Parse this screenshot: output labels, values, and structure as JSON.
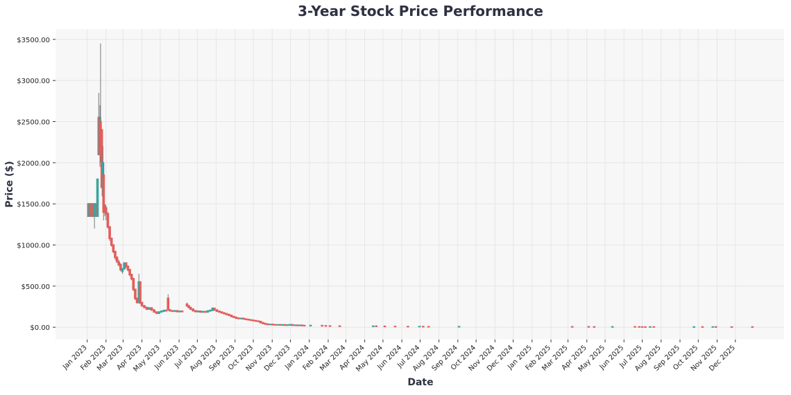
{
  "chart_data": {
    "type": "candlestick",
    "title": "3-Year Stock Price Performance",
    "xlabel": "Date",
    "ylabel": "Price ($)",
    "xlim": [
      "2022-11-10",
      "2026-02-19"
    ],
    "ylim": [
      -150,
      3625
    ],
    "grid": true,
    "x_ticks": [
      "Jan 2023",
      "Feb 2023",
      "Mar 2023",
      "Apr 2023",
      "May 2023",
      "Jun 2023",
      "Jul 2023",
      "Aug 2023",
      "Sep 2023",
      "Oct 2023",
      "Nov 2023",
      "Dec 2023",
      "Jan 2024",
      "Feb 2024",
      "Mar 2024",
      "Apr 2024",
      "May 2024",
      "Jun 2024",
      "Jul 2024",
      "Aug 2024",
      "Sep 2024",
      "Oct 2024",
      "Nov 2024",
      "Dec 2024",
      "Jan 2025",
      "Feb 2025",
      "Mar 2025",
      "Apr 2025",
      "May 2025",
      "Jun 2025",
      "Jul 2025",
      "Aug 2025",
      "Sep 2025",
      "Oct 2025",
      "Nov 2025",
      "Dec 2025"
    ],
    "x_tick_dates": [
      "2023-01-01",
      "2023-02-01",
      "2023-03-01",
      "2023-04-01",
      "2023-05-01",
      "2023-06-01",
      "2023-07-01",
      "2023-08-01",
      "2023-09-01",
      "2023-10-01",
      "2023-11-01",
      "2023-12-01",
      "2024-01-01",
      "2024-02-01",
      "2024-03-01",
      "2024-04-01",
      "2024-05-01",
      "2024-06-01",
      "2024-07-01",
      "2024-08-01",
      "2024-09-01",
      "2024-10-01",
      "2024-11-01",
      "2024-12-01",
      "2025-01-01",
      "2025-02-01",
      "2025-03-01",
      "2025-04-01",
      "2025-05-01",
      "2025-06-01",
      "2025-07-01",
      "2025-08-01",
      "2025-09-01",
      "2025-10-01",
      "2025-11-01",
      "2025-12-01"
    ],
    "y_ticks": [
      0,
      500,
      1000,
      1500,
      2000,
      2500,
      3000,
      3500
    ],
    "y_tick_labels": [
      "$0.00",
      "$500.00",
      "$1000.00",
      "$1500.00",
      "$2000.00",
      "$2500.00",
      "$3000.00",
      "$3500.00"
    ],
    "colors": {
      "up": "#3aa6a0",
      "down": "#e35d5b",
      "wick": "#777777",
      "background": "#f7f7f7",
      "title": "#2d3142"
    },
    "candle_fields": [
      "date",
      "open",
      "high",
      "low",
      "close"
    ],
    "candles": [
      [
        "2023-01-03",
        1500,
        1500,
        1350,
        1350
      ],
      [
        "2023-01-05",
        1350,
        1500,
        1350,
        1500
      ],
      [
        "2023-01-07",
        1500,
        1500,
        1350,
        1350
      ],
      [
        "2023-01-09",
        1350,
        1500,
        1350,
        1500
      ],
      [
        "2023-01-11",
        1500,
        1500,
        1350,
        1350
      ],
      [
        "2023-01-13",
        1350,
        1500,
        1200,
        1500
      ],
      [
        "2023-01-16",
        1500,
        1500,
        1350,
        1350
      ],
      [
        "2023-01-18",
        1350,
        1800,
        1350,
        1800
      ],
      [
        "2023-01-20",
        2550,
        2850,
        2100,
        2100
      ],
      [
        "2023-01-22",
        2100,
        2700,
        1950,
        2550
      ],
      [
        "2023-01-23",
        2500,
        3450,
        2000,
        2100
      ],
      [
        "2023-01-25",
        2400,
        2400,
        1700,
        1700
      ],
      [
        "2023-01-27",
        1600,
        2200,
        1550,
        2000
      ],
      [
        "2023-01-28",
        1850,
        2000,
        1300,
        1400
      ],
      [
        "2023-01-30",
        1480,
        1500,
        1350,
        1420
      ],
      [
        "2023-02-01",
        1450,
        1480,
        1300,
        1380
      ],
      [
        "2023-02-04",
        1380,
        1400,
        1200,
        1220
      ],
      [
        "2023-02-07",
        1220,
        1230,
        1050,
        1080
      ],
      [
        "2023-02-10",
        1080,
        1090,
        980,
        1000
      ],
      [
        "2023-02-13",
        1000,
        1000,
        900,
        920
      ],
      [
        "2023-02-16",
        920,
        930,
        820,
        850
      ],
      [
        "2023-02-19",
        850,
        860,
        780,
        800
      ],
      [
        "2023-02-22",
        790,
        820,
        740,
        760
      ],
      [
        "2023-02-25",
        760,
        780,
        680,
        700
      ],
      [
        "2023-02-28",
        680,
        720,
        650,
        710
      ],
      [
        "2023-03-03",
        710,
        790,
        700,
        780
      ],
      [
        "2023-03-06",
        780,
        790,
        720,
        740
      ],
      [
        "2023-03-09",
        740,
        750,
        680,
        700
      ],
      [
        "2023-03-12",
        700,
        710,
        620,
        640
      ],
      [
        "2023-03-15",
        640,
        650,
        570,
        590
      ],
      [
        "2023-03-18",
        590,
        600,
        440,
        460
      ],
      [
        "2023-03-21",
        460,
        470,
        330,
        350
      ],
      [
        "2023-03-24",
        350,
        360,
        290,
        300
      ],
      [
        "2023-03-27",
        300,
        650,
        290,
        550
      ],
      [
        "2023-03-29",
        550,
        560,
        280,
        300
      ],
      [
        "2023-04-01",
        300,
        310,
        250,
        260
      ],
      [
        "2023-04-05",
        260,
        270,
        230,
        240
      ],
      [
        "2023-04-09",
        240,
        250,
        210,
        220
      ],
      [
        "2023-04-13",
        220,
        240,
        210,
        235
      ],
      [
        "2023-04-17",
        235,
        240,
        200,
        210
      ],
      [
        "2023-04-21",
        210,
        215,
        180,
        185
      ],
      [
        "2023-04-25",
        185,
        190,
        160,
        170
      ],
      [
        "2023-04-29",
        170,
        190,
        160,
        185
      ],
      [
        "2023-05-03",
        185,
        200,
        180,
        195
      ],
      [
        "2023-05-07",
        195,
        210,
        185,
        205
      ],
      [
        "2023-05-11",
        205,
        215,
        195,
        200
      ],
      [
        "2023-05-14",
        350,
        400,
        200,
        220
      ],
      [
        "2023-05-17",
        210,
        220,
        190,
        200
      ],
      [
        "2023-05-21",
        200,
        210,
        185,
        195
      ],
      [
        "2023-05-25",
        195,
        205,
        185,
        200
      ],
      [
        "2023-05-29",
        200,
        205,
        185,
        190
      ],
      [
        "2023-06-02",
        190,
        200,
        180,
        195
      ],
      [
        "2023-06-06",
        195,
        200,
        185,
        190
      ],
      [
        "2023-06-14",
        280,
        300,
        250,
        260
      ],
      [
        "2023-06-17",
        260,
        265,
        230,
        240
      ],
      [
        "2023-06-20",
        240,
        245,
        210,
        220
      ],
      [
        "2023-06-24",
        220,
        225,
        195,
        200
      ],
      [
        "2023-06-28",
        200,
        205,
        185,
        190
      ],
      [
        "2023-07-02",
        190,
        200,
        180,
        195
      ],
      [
        "2023-07-06",
        195,
        200,
        180,
        185
      ],
      [
        "2023-07-10",
        185,
        195,
        175,
        190
      ],
      [
        "2023-07-14",
        190,
        195,
        180,
        185
      ],
      [
        "2023-07-18",
        185,
        200,
        180,
        198
      ],
      [
        "2023-07-22",
        198,
        210,
        190,
        205
      ],
      [
        "2023-07-26",
        205,
        240,
        200,
        230
      ],
      [
        "2023-07-29",
        230,
        235,
        200,
        210
      ],
      [
        "2023-08-02",
        210,
        215,
        190,
        195
      ],
      [
        "2023-08-06",
        195,
        200,
        180,
        185
      ],
      [
        "2023-08-10",
        185,
        190,
        170,
        175
      ],
      [
        "2023-08-14",
        175,
        180,
        160,
        165
      ],
      [
        "2023-08-18",
        165,
        170,
        150,
        155
      ],
      [
        "2023-08-22",
        155,
        160,
        140,
        145
      ],
      [
        "2023-08-26",
        145,
        150,
        125,
        130
      ],
      [
        "2023-08-30",
        130,
        135,
        115,
        120
      ],
      [
        "2023-09-03",
        120,
        125,
        105,
        110
      ],
      [
        "2023-09-07",
        110,
        115,
        100,
        105
      ],
      [
        "2023-09-11",
        105,
        110,
        95,
        108
      ],
      [
        "2023-09-15",
        108,
        112,
        98,
        100
      ],
      [
        "2023-09-19",
        100,
        105,
        90,
        95
      ],
      [
        "2023-09-23",
        95,
        100,
        85,
        90
      ],
      [
        "2023-09-27",
        90,
        95,
        80,
        85
      ],
      [
        "2023-10-01",
        85,
        90,
        75,
        80
      ],
      [
        "2023-10-05",
        80,
        85,
        70,
        75
      ],
      [
        "2023-10-09",
        75,
        80,
        65,
        70
      ],
      [
        "2023-10-13",
        70,
        72,
        50,
        55
      ],
      [
        "2023-10-17",
        55,
        58,
        40,
        45
      ],
      [
        "2023-10-21",
        45,
        48,
        35,
        38
      ],
      [
        "2023-10-25",
        38,
        40,
        30,
        33
      ],
      [
        "2023-10-29",
        33,
        38,
        30,
        35
      ],
      [
        "2023-11-02",
        35,
        36,
        28,
        30
      ],
      [
        "2023-11-06",
        30,
        32,
        25,
        28
      ],
      [
        "2023-11-10",
        28,
        32,
        26,
        30
      ],
      [
        "2023-11-14",
        30,
        31,
        25,
        27
      ],
      [
        "2023-11-18",
        27,
        30,
        24,
        29
      ],
      [
        "2023-11-22",
        29,
        30,
        24,
        25
      ],
      [
        "2023-11-26",
        25,
        28,
        22,
        27
      ],
      [
        "2023-11-30",
        27,
        40,
        25,
        30
      ],
      [
        "2023-12-04",
        30,
        31,
        22,
        24
      ],
      [
        "2023-12-08",
        24,
        26,
        20,
        25
      ],
      [
        "2023-12-12",
        25,
        26,
        20,
        22
      ],
      [
        "2023-12-16",
        22,
        25,
        20,
        24
      ],
      [
        "2023-12-20",
        24,
        25,
        19,
        20
      ],
      [
        "2023-12-24",
        20,
        22,
        18,
        19
      ],
      [
        "2024-01-03",
        18,
        22,
        17,
        21
      ],
      [
        "2024-01-22",
        20,
        21,
        16,
        17
      ],
      [
        "2024-01-28",
        17,
        18,
        14,
        15
      ],
      [
        "2024-02-04",
        15,
        16,
        12,
        13
      ],
      [
        "2024-02-20",
        14,
        15,
        11,
        12
      ],
      [
        "2024-04-15",
        10,
        14,
        9,
        13
      ],
      [
        "2024-04-20",
        13,
        14,
        10,
        11
      ],
      [
        "2024-05-04",
        11,
        12,
        8,
        9
      ],
      [
        "2024-05-21",
        9,
        10,
        7,
        8
      ],
      [
        "2024-06-11",
        8,
        9,
        6,
        7
      ],
      [
        "2024-06-30",
        7,
        9,
        6,
        8
      ],
      [
        "2024-07-06",
        8,
        9,
        5,
        6
      ],
      [
        "2024-07-15",
        6,
        7,
        4,
        5
      ],
      [
        "2024-09-03",
        5,
        8,
        4,
        7
      ],
      [
        "2025-03-08",
        5,
        5,
        4,
        4
      ],
      [
        "2025-04-04",
        6,
        7,
        3,
        4
      ],
      [
        "2025-04-13",
        4,
        4,
        3,
        3
      ],
      [
        "2025-05-13",
        3,
        6,
        3,
        5
      ],
      [
        "2025-06-19",
        5,
        6,
        3,
        4
      ],
      [
        "2025-06-26",
        4,
        5,
        2,
        3
      ],
      [
        "2025-07-01",
        3,
        4,
        2,
        2.5
      ],
      [
        "2025-07-06",
        2.5,
        3,
        1.5,
        2
      ],
      [
        "2025-07-14",
        2,
        4,
        2,
        3.5
      ],
      [
        "2025-07-20",
        3.5,
        4,
        2,
        2.5
      ],
      [
        "2025-09-24",
        2,
        4,
        2,
        3.5
      ],
      [
        "2025-10-08",
        3.5,
        4,
        2,
        2.5
      ],
      [
        "2025-10-25",
        2.5,
        4,
        2,
        3.5
      ],
      [
        "2025-10-30",
        3.5,
        4,
        2,
        2.5
      ],
      [
        "2025-11-25",
        2.5,
        3,
        2,
        2.2
      ],
      [
        "2025-12-29",
        3,
        4,
        1.5,
        2
      ]
    ]
  }
}
